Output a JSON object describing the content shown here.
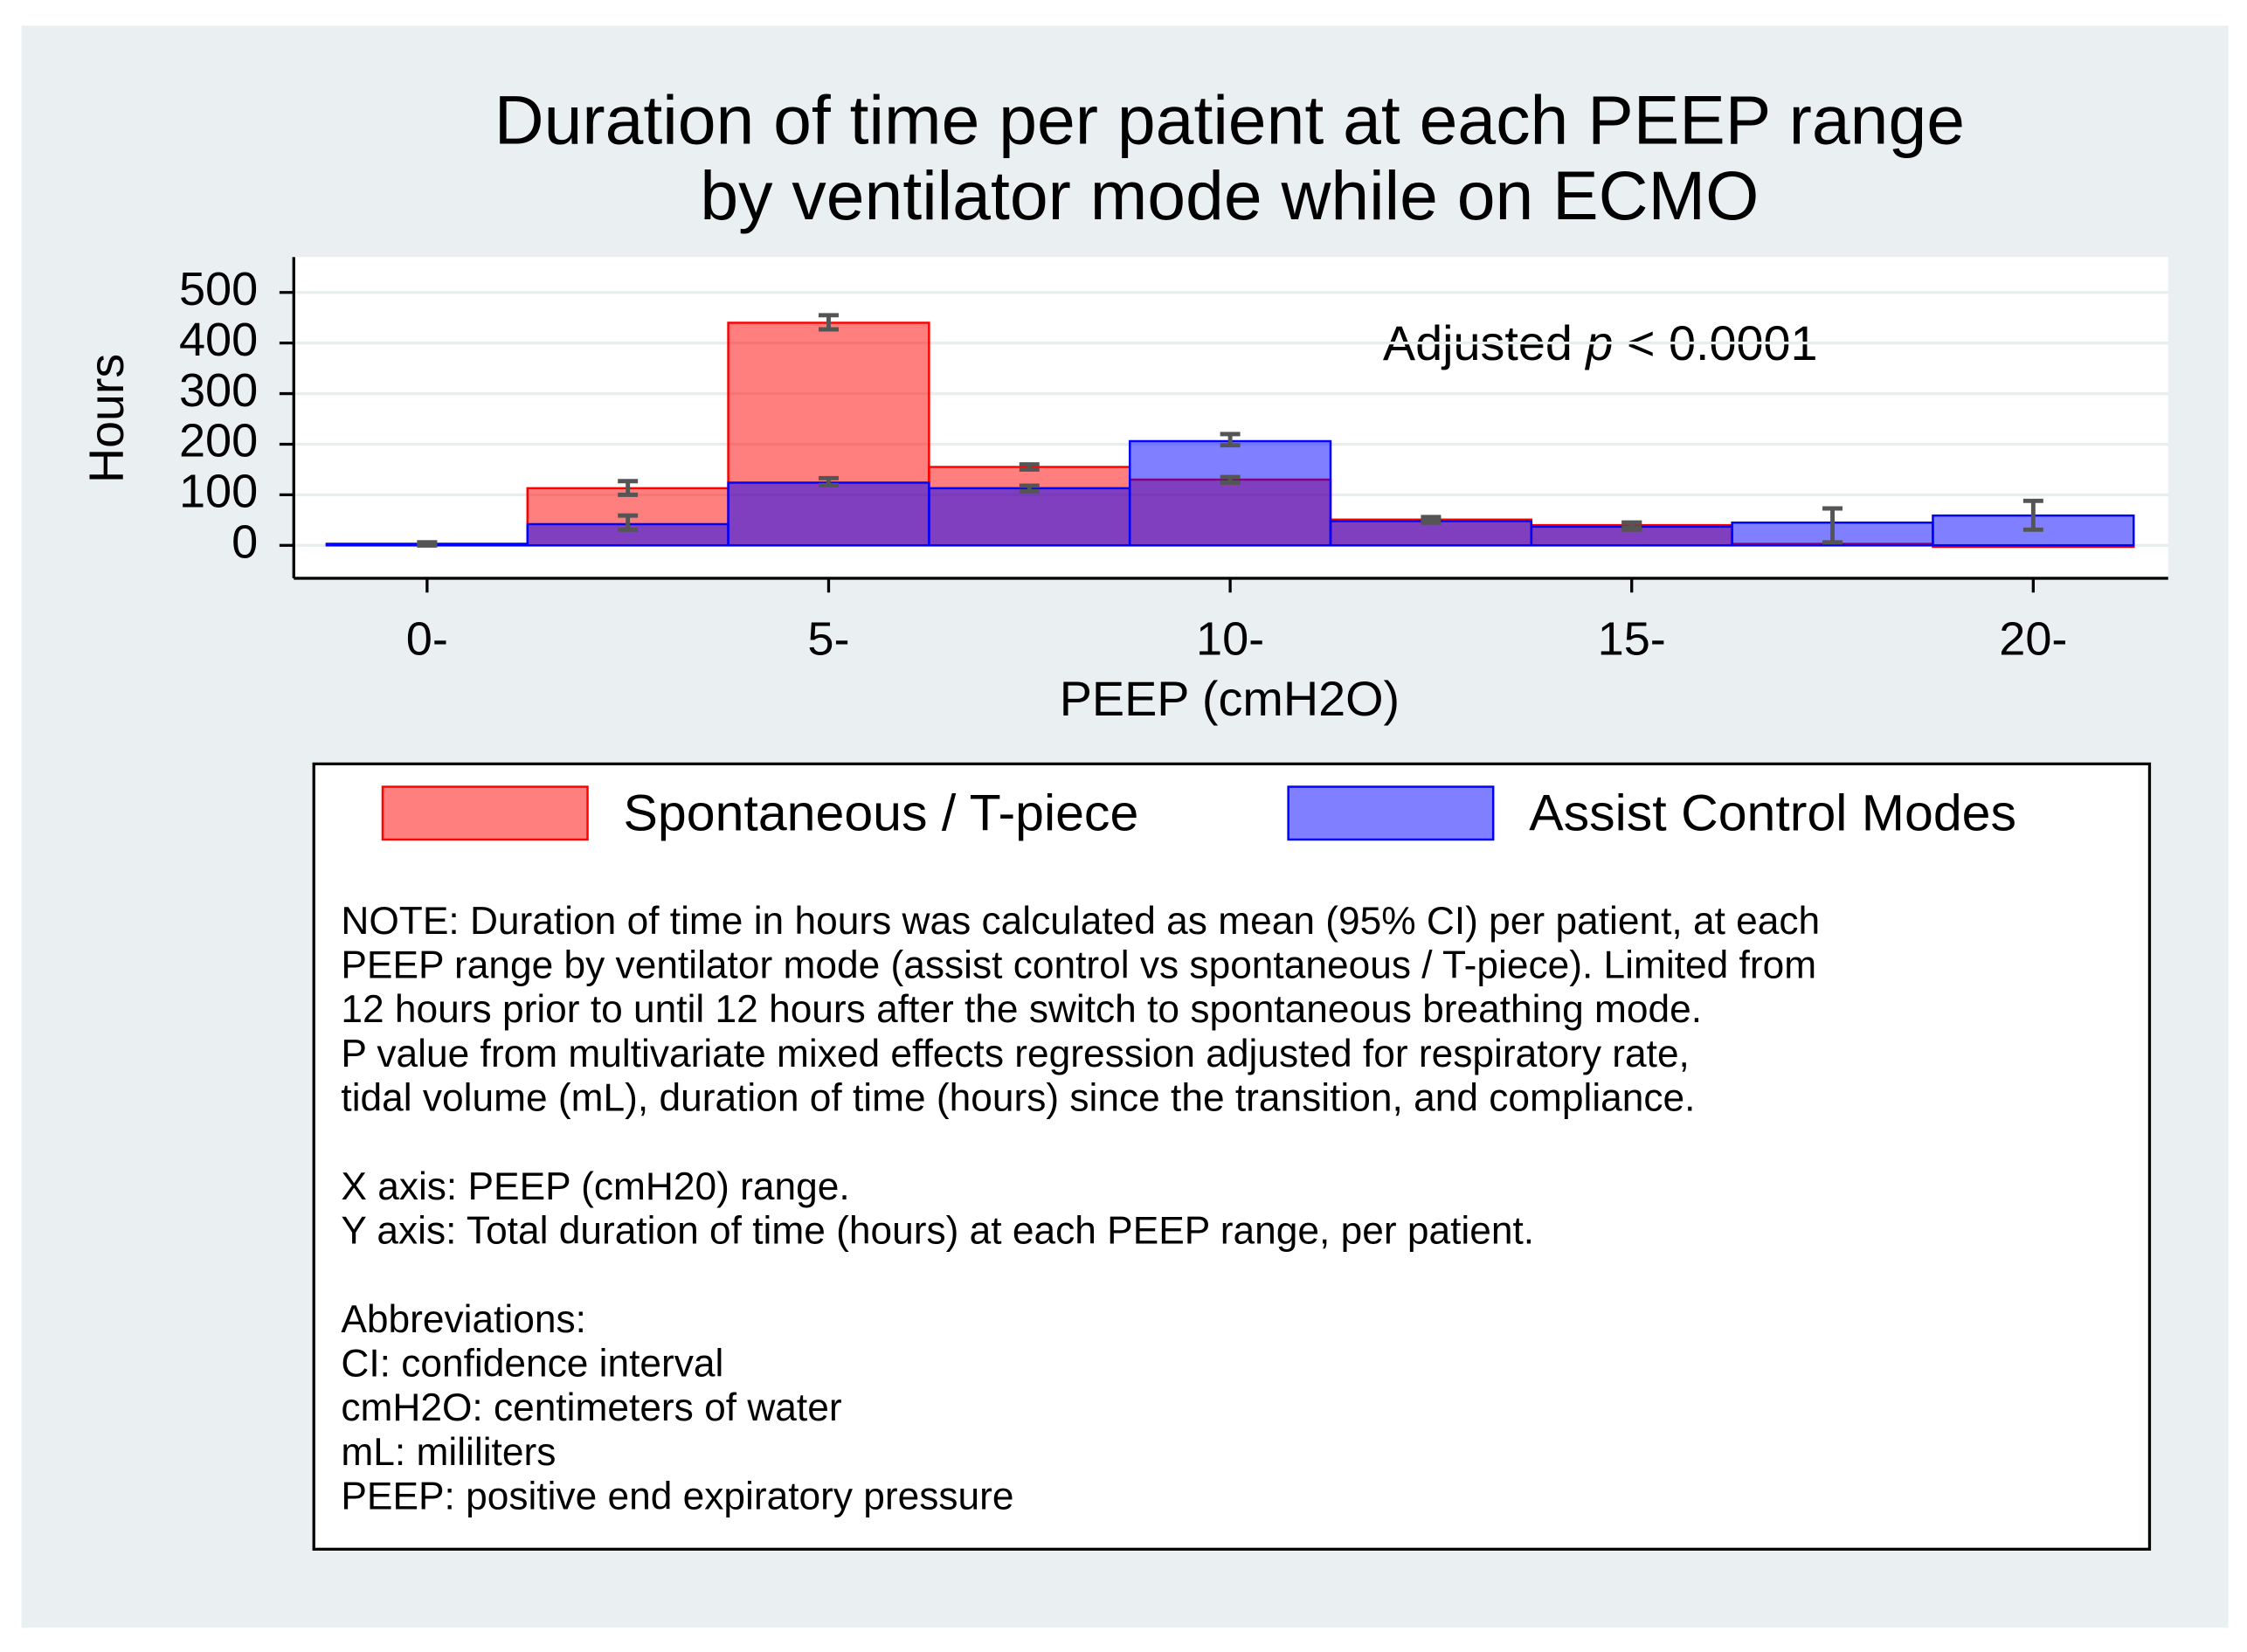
{
  "chart_data": {
    "type": "histogram",
    "title": [
      "Duration of time per patient at each PEEP range",
      "by ventilator mode while on ECMO"
    ],
    "x_label": "PEEP (cmH2O)",
    "y_label": "Hours",
    "annotation": {
      "prefix": "Adjusted",
      "italic": "p",
      "suffix": "< 0.0001"
    },
    "bins": [
      -1.25,
      1.25,
      3.75,
      6.25,
      8.75,
      11.25,
      13.75,
      16.25,
      18.75,
      21.25
    ],
    "series": [
      {
        "name": "Spontaneous / T-piece",
        "color": "#ff0000",
        "values": [
          3,
          113,
          440,
          155,
          130,
          51,
          40,
          3,
          0
        ],
        "ci": [
          [
            0,
            6
          ],
          [
            100,
            127
          ],
          [
            427,
            455
          ],
          [
            150,
            160
          ],
          [
            124,
            135
          ],
          [
            45,
            56
          ],
          [
            35,
            45
          ],
          null,
          null
        ]
      },
      {
        "name": "Assist Control Modes",
        "color": "#0000ff",
        "values": [
          3,
          42,
          124,
          113,
          206,
          48,
          37,
          45,
          59
        ],
        "ci": [
          [
            0,
            6
          ],
          [
            31,
            59
          ],
          [
            119,
            133
          ],
          [
            107,
            118
          ],
          [
            198,
            220
          ],
          [
            45,
            53
          ],
          [
            31,
            45
          ],
          [
            6,
            73
          ],
          [
            31,
            88
          ]
        ]
      }
    ],
    "fill_opacity": 0.5,
    "xlim": [
      -1.66,
      21.68
    ],
    "ylim": [
      -65,
      570
    ],
    "xticks": [
      {
        "value": 0,
        "label": "0-"
      },
      {
        "value": 5,
        "label": "5-"
      },
      {
        "value": 10,
        "label": "10-"
      },
      {
        "value": 15,
        "label": "15-"
      },
      {
        "value": 20,
        "label": "20-"
      }
    ],
    "yticks": [
      0,
      100,
      200,
      300,
      400,
      500
    ],
    "grid": true,
    "notes": [
      [
        "NOTE: Duration of time in hours was calculated as mean (95% CI) per patient, at each",
        "PEEP range by ventilator mode (assist control vs spontaneous / T-piece). Limited from",
        "12 hours prior to until 12 hours after the switch to spontaneous breathing mode.",
        "P value from multivariate mixed effects regression adjusted for respiratory rate,",
        "tidal volume (mL), duration of time (hours) since the transition, and compliance."
      ],
      [
        "X axis:  PEEP (cmH20) range.",
        "Y axis: Total duration of time (hours) at each PEEP range, per patient."
      ],
      [
        "Abbreviations:",
        "CI: confidence interval",
        "cmH2O: centimeters of water",
        "mL: mililiters",
        "PEEP: positive end expiratory pressure"
      ]
    ]
  }
}
